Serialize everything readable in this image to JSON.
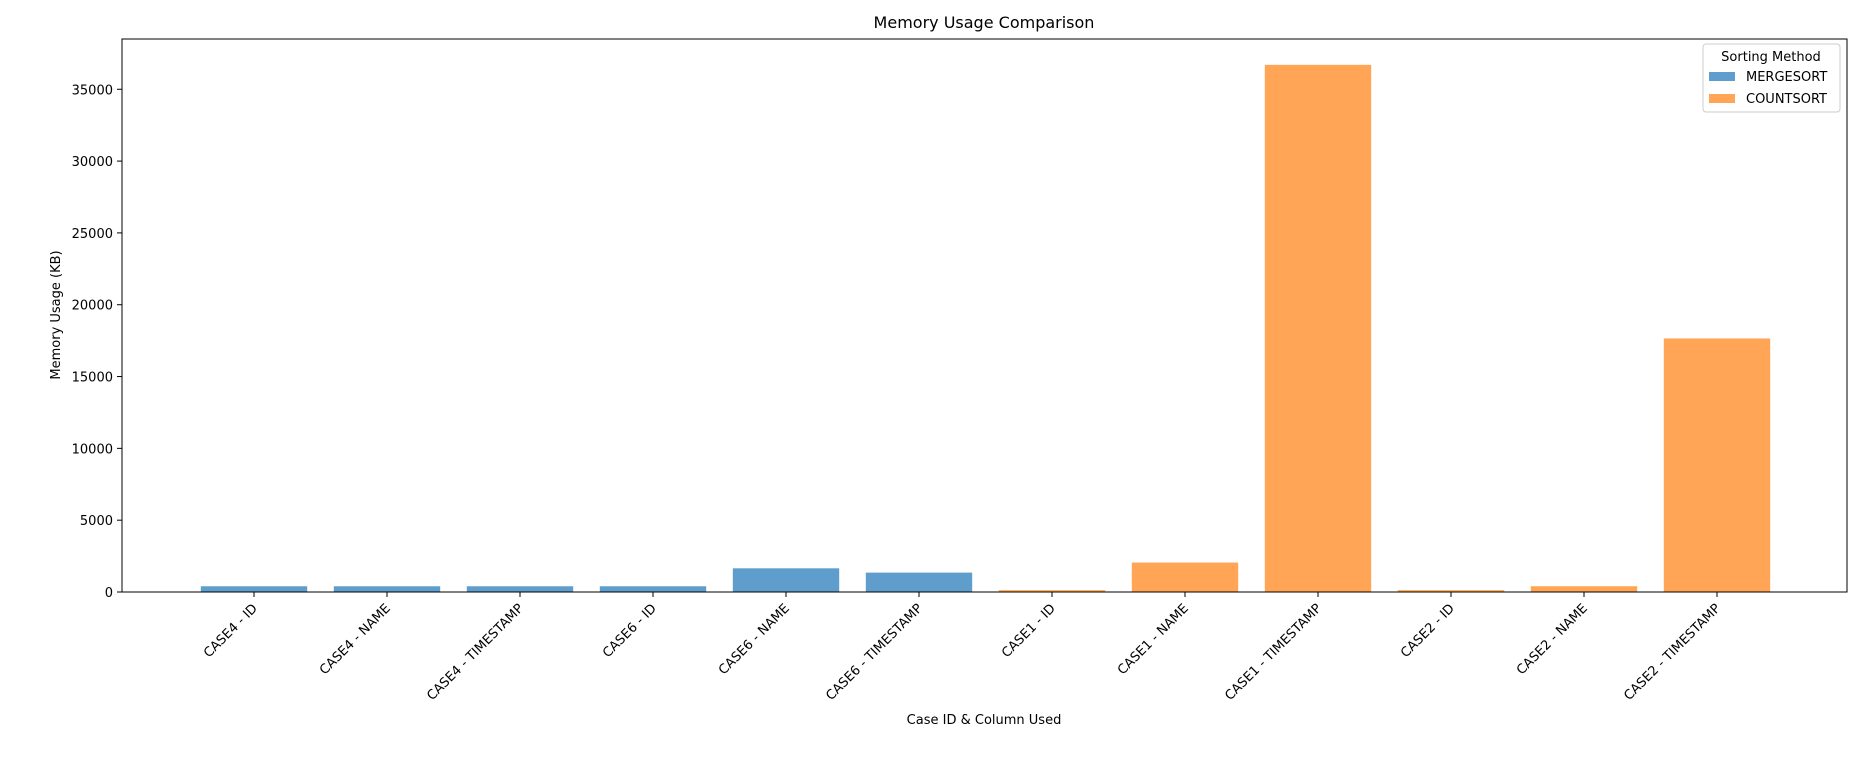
{
  "chart_data": {
    "type": "bar",
    "title": "Memory Usage Comparison",
    "xlabel": "Case ID & Column Used",
    "ylabel": "Memory Usage (KB)",
    "ylim": [
      0,
      38500
    ],
    "yticks": [
      0,
      5000,
      10000,
      15000,
      20000,
      25000,
      30000,
      35000
    ],
    "grid": false,
    "legend": {
      "title": "Sorting Method",
      "placement": "top-right"
    },
    "categories": [
      "CASE4 - ID",
      "CASE4 - NAME",
      "CASE4 - TIMESTAMP",
      "CASE6 - ID",
      "CASE6 - NAME",
      "CASE6 - TIMESTAMP",
      "CASE1 - ID",
      "CASE1 - NAME",
      "CASE1 - TIMESTAMP",
      "CASE2 - ID",
      "CASE2 - NAME",
      "CASE2 - TIMESTAMP"
    ],
    "series": [
      {
        "name": "MERGESORT",
        "color": "#5f9ecc",
        "values": [
          400,
          400,
          400,
          400,
          1650,
          1350,
          null,
          null,
          null,
          null,
          null,
          null
        ]
      },
      {
        "name": "COUNTSORT",
        "color": "#ffa555",
        "values": [
          null,
          null,
          null,
          null,
          null,
          null,
          130,
          2050,
          36700,
          130,
          400,
          17650
        ]
      }
    ]
  }
}
